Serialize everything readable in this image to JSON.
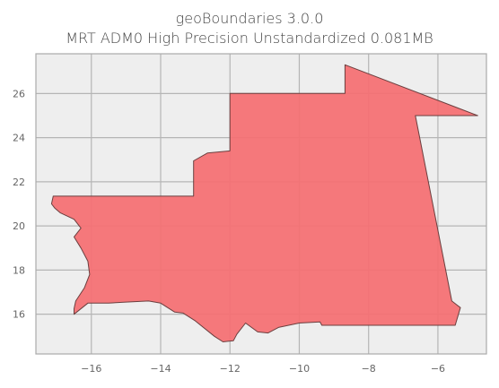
{
  "title": {
    "line1": "geoBoundaries 3.0.0",
    "line2": "MRT ADM0 High Precision Unstandardized 0.081MB"
  },
  "colors": {
    "fill": "#f47174",
    "stroke": "#6b3f3f",
    "plot_bg": "#eeeeee",
    "grid": "#b5b5b5",
    "frame": "#aaaaaa"
  },
  "chart_data": {
    "type": "map",
    "xlim": [
      -17.6,
      -4.6
    ],
    "ylim": [
      14.2,
      27.8
    ],
    "x_ticks": [
      -16,
      -14,
      -12,
      -10,
      -8,
      -6
    ],
    "y_ticks": [
      16,
      18,
      20,
      22,
      24,
      26
    ],
    "x_tick_labels": [
      "−16",
      "−14",
      "−12",
      "−10",
      "−8",
      "−6"
    ],
    "y_tick_labels": [
      "16",
      "18",
      "20",
      "22",
      "24",
      "26"
    ],
    "grid": true,
    "shape": [
      [
        -17.1,
        21.35
      ],
      [
        -13.05,
        21.35
      ],
      [
        -13.05,
        22.95
      ],
      [
        -12.65,
        23.3
      ],
      [
        -12.0,
        23.4
      ],
      [
        -12.0,
        26.0
      ],
      [
        -8.68,
        26.0
      ],
      [
        -8.68,
        27.3
      ],
      [
        -4.85,
        25.0
      ],
      [
        -6.65,
        25.0
      ],
      [
        -5.6,
        16.6
      ],
      [
        -5.35,
        16.3
      ],
      [
        -5.5,
        15.5
      ],
      [
        -9.35,
        15.5
      ],
      [
        -9.4,
        15.65
      ],
      [
        -10.0,
        15.6
      ],
      [
        -10.6,
        15.4
      ],
      [
        -10.9,
        15.15
      ],
      [
        -11.2,
        15.2
      ],
      [
        -11.55,
        15.6
      ],
      [
        -11.8,
        15.1
      ],
      [
        -11.9,
        14.8
      ],
      [
        -12.2,
        14.75
      ],
      [
        -12.45,
        15.0
      ],
      [
        -13.0,
        15.7
      ],
      [
        -13.35,
        16.05
      ],
      [
        -13.6,
        16.1
      ],
      [
        -14.0,
        16.5
      ],
      [
        -14.35,
        16.6
      ],
      [
        -15.0,
        16.55
      ],
      [
        -15.5,
        16.5
      ],
      [
        -16.1,
        16.5
      ],
      [
        -16.5,
        16.0
      ],
      [
        -16.5,
        16.25
      ],
      [
        -16.45,
        16.6
      ],
      [
        -16.2,
        17.2
      ],
      [
        -16.05,
        17.8
      ],
      [
        -16.1,
        18.4
      ],
      [
        -16.3,
        19.0
      ],
      [
        -16.5,
        19.5
      ],
      [
        -16.3,
        19.9
      ],
      [
        -16.5,
        20.3
      ],
      [
        -16.9,
        20.6
      ],
      [
        -17.05,
        20.8
      ],
      [
        -17.15,
        21.0
      ]
    ]
  }
}
